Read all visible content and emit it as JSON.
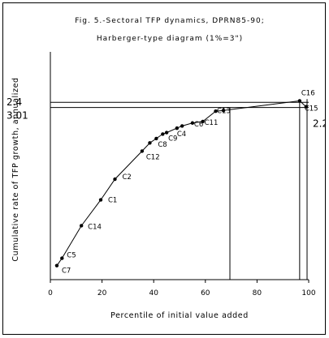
{
  "chart_data": {
    "type": "line",
    "title": "Fig. 5.-Sectoral TFP dynamics, DPRN85-90;",
    "subtitle": "Harberger-type diagram (1%=3\")",
    "xlabel": "Percentile of initial value added",
    "ylabel": "Cumulative rate of TFP growth, annualized",
    "xlim": [
      0,
      100
    ],
    "ylim": [
      0,
      2.6
    ],
    "xticks": [
      0,
      20,
      40,
      60,
      80,
      100
    ],
    "grid": false,
    "legend": "none",
    "reference_values": [
      {
        "label": "2.4",
        "y": 2.4,
        "side": "left"
      },
      {
        "label": "3.01",
        "y": 2.33,
        "side": "left"
      },
      {
        "label": "2.2",
        "y": 2.33,
        "side": "right"
      }
    ],
    "vertical_lines_x": [
      69.5,
      96.5
    ],
    "points": [
      {
        "x": 2.5,
        "y": 0.19,
        "label": "C7"
      },
      {
        "x": 4.5,
        "y": 0.29,
        "label": "C5"
      },
      {
        "x": 12.0,
        "y": 0.73,
        "label": "C14"
      },
      {
        "x": 19.5,
        "y": 1.08,
        "label": "C1"
      },
      {
        "x": 25.0,
        "y": 1.36,
        "label": "C2"
      },
      {
        "x": 35.5,
        "y": 1.74,
        "label": "C12"
      },
      {
        "x": 38.5,
        "y": 1.85,
        "label": ""
      },
      {
        "x": 41.0,
        "y": 1.91,
        "label": "C8"
      },
      {
        "x": 43.5,
        "y": 1.97,
        "label": ""
      },
      {
        "x": 45.0,
        "y": 1.99,
        "label": "C9"
      },
      {
        "x": 49.0,
        "y": 2.05,
        "label": "C4"
      },
      {
        "x": 51.0,
        "y": 2.08,
        "label": ""
      },
      {
        "x": 55.0,
        "y": 2.12,
        "label": "C6"
      },
      {
        "x": 59.0,
        "y": 2.14,
        "label": "C11"
      },
      {
        "x": 64.0,
        "y": 2.28,
        "label": ""
      },
      {
        "x": 67.0,
        "y": 2.29,
        "label": "C13"
      },
      {
        "x": 96.5,
        "y": 2.42,
        "label": "C16"
      },
      {
        "x": 99.0,
        "y": 2.34,
        "label": "C15"
      }
    ]
  }
}
